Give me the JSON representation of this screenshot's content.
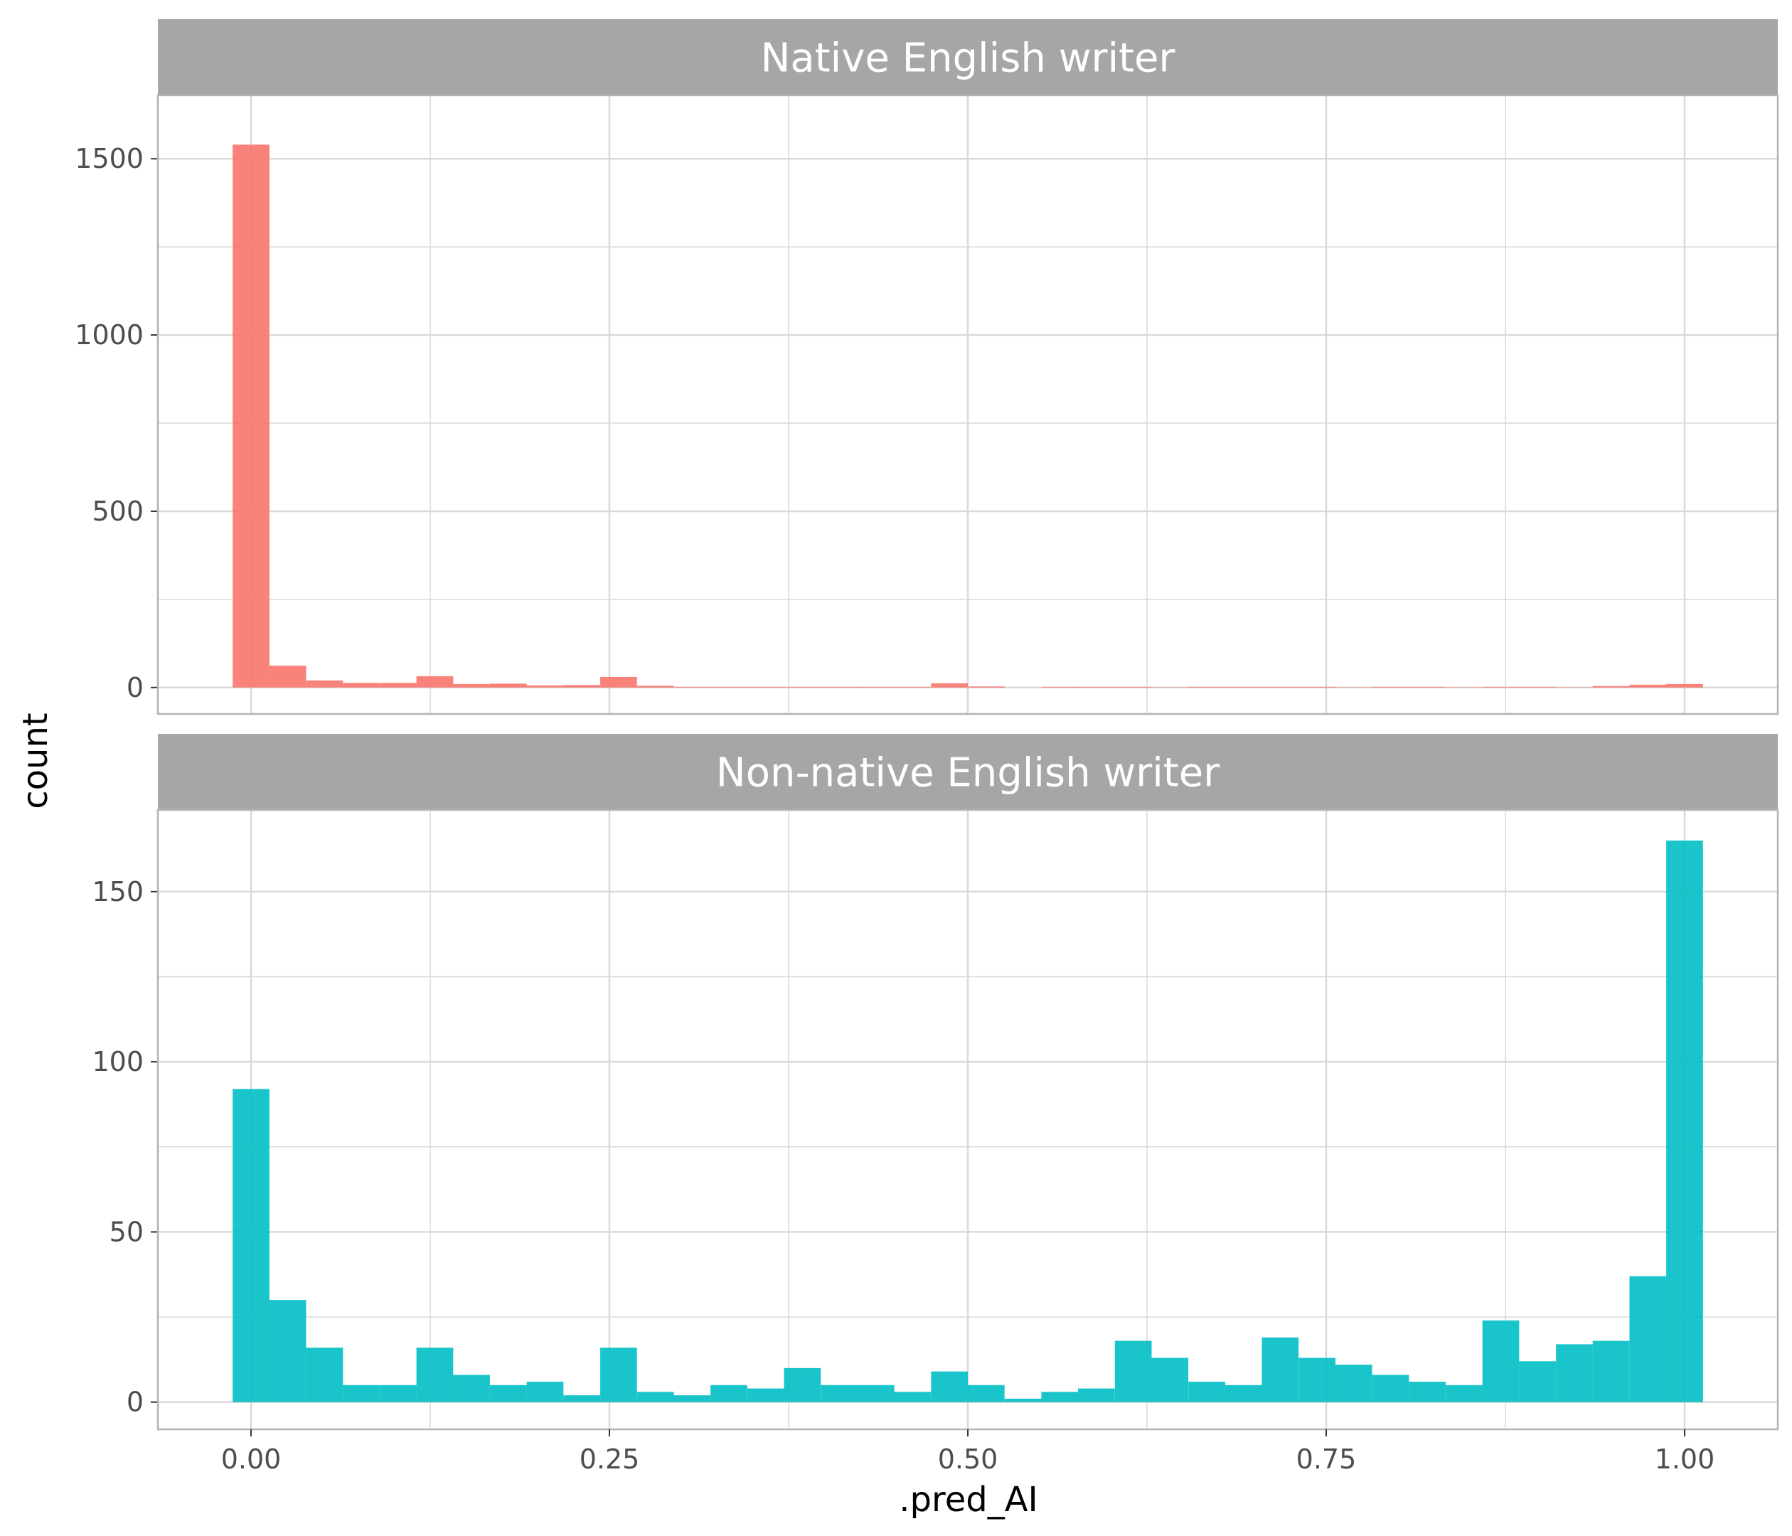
{
  "chart_data": {
    "type": "bar",
    "subtype": "faceted-histogram",
    "xlabel": ".pred_AI",
    "ylabel": "count",
    "grid": true,
    "legend": "none",
    "bin_width": 0.02564,
    "x_bin_centers": [
      0.0,
      0.0256,
      0.0513,
      0.0769,
      0.1026,
      0.1282,
      0.1538,
      0.1795,
      0.2051,
      0.2308,
      0.2564,
      0.2821,
      0.3077,
      0.3333,
      0.359,
      0.3846,
      0.4103,
      0.4359,
      0.4615,
      0.4872,
      0.5128,
      0.5385,
      0.5641,
      0.5897,
      0.6154,
      0.641,
      0.6667,
      0.6923,
      0.7179,
      0.7436,
      0.7692,
      0.7949,
      0.8205,
      0.8462,
      0.8718,
      0.8974,
      0.9231,
      0.9487,
      0.9744,
      1.0
    ],
    "x_ticks": [
      "0.00",
      "0.25",
      "0.50",
      "0.75",
      "1.00"
    ],
    "x_tick_values": [
      0,
      0.25,
      0.5,
      0.75,
      1.0
    ],
    "xlim": [
      -0.065,
      1.065
    ],
    "panels": [
      {
        "name": "Native English writer",
        "color": "#F8766D",
        "ylim": [
          -75,
          1680
        ],
        "y_ticks": [
          "0",
          "500",
          "1000",
          "1500"
        ],
        "y_tick_values": [
          0,
          500,
          1000,
          1500
        ],
        "values": [
          1540,
          62,
          20,
          13,
          13,
          32,
          10,
          11,
          6,
          7,
          30,
          5,
          2,
          2,
          2,
          2,
          2,
          2,
          2,
          12,
          3,
          0,
          2,
          2,
          2,
          1,
          2,
          2,
          2,
          2,
          1,
          2,
          2,
          1,
          2,
          2,
          1,
          4,
          8,
          10
        ]
      },
      {
        "name": "Non-native English writer",
        "color": "#00BFC4",
        "ylim": [
          -8,
          174
        ],
        "y_ticks": [
          "0",
          "50",
          "100",
          "150"
        ],
        "y_tick_values": [
          0,
          50,
          100,
          150
        ],
        "values": [
          92,
          30,
          16,
          5,
          5,
          16,
          8,
          5,
          6,
          2,
          16,
          3,
          2,
          5,
          4,
          10,
          5,
          5,
          3,
          9,
          5,
          1,
          3,
          4,
          18,
          13,
          6,
          5,
          19,
          13,
          11,
          8,
          6,
          5,
          24,
          12,
          17,
          18,
          37,
          165
        ]
      }
    ]
  },
  "colors": {
    "strip_bg": "#A6A6A6",
    "grid": "#D9D9D9",
    "panel_border": "#B3B3B3"
  }
}
